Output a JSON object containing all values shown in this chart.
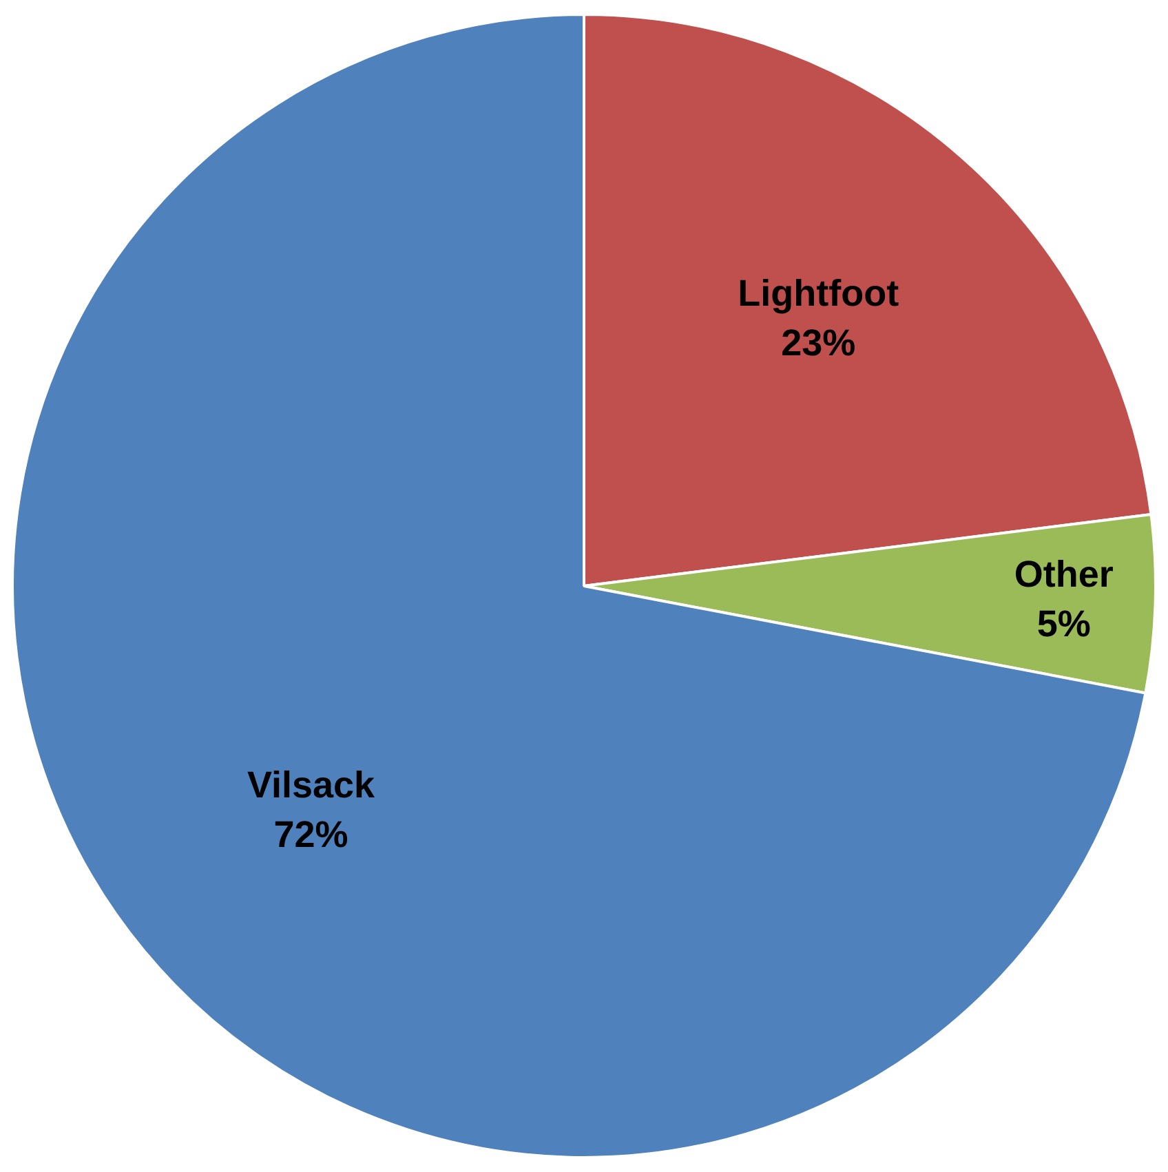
{
  "chart_data": {
    "type": "pie",
    "categories": [
      "Lightfoot",
      "Other",
      "Vilsack"
    ],
    "values": [
      23,
      5,
      72
    ],
    "colors": [
      "#c0504d",
      "#9bbb59",
      "#4f81bd"
    ],
    "value_labels": [
      "23%",
      "5%",
      "72%"
    ],
    "legend": false
  }
}
